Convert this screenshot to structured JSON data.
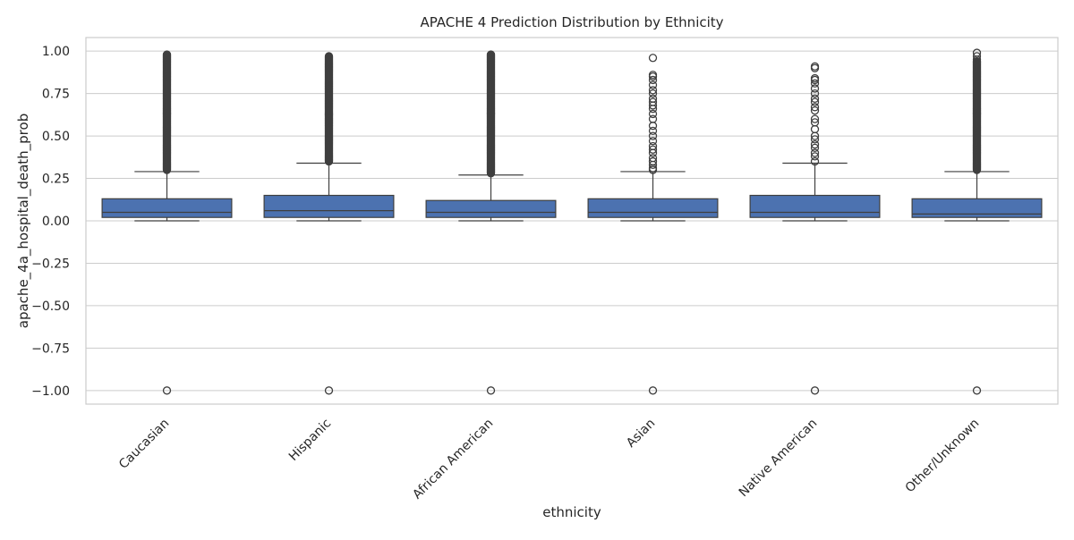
{
  "chart_data": {
    "type": "box",
    "title": "APACHE 4 Prediction Distribution by Ethnicity",
    "xlabel": "ethnicity",
    "ylabel": "apache_4a_hospital_death_prob",
    "ylim": [
      -1.08,
      1.08
    ],
    "yticks": [
      1.0,
      0.75,
      0.5,
      0.25,
      0.0,
      -0.25,
      -0.5,
      -0.75,
      -1.0
    ],
    "ytick_labels": [
      "1.00",
      "0.75",
      "0.50",
      "0.25",
      "0.00",
      "−0.25",
      "−0.50",
      "−0.75",
      "−1.00"
    ],
    "grid": true,
    "legend": "none",
    "categories": [
      "Caucasian",
      "Hispanic",
      "African American",
      "Asian",
      "Native American",
      "Other/Unknown"
    ],
    "boxes": [
      {
        "category": "Caucasian",
        "q1": 0.02,
        "median": 0.05,
        "q3": 0.13,
        "whisker_low": 0.0,
        "whisker_high": 0.29,
        "outlier_range": [
          0.3,
          0.98
        ],
        "outliers": [
          -1.0
        ]
      },
      {
        "category": "Hispanic",
        "q1": 0.02,
        "median": 0.06,
        "q3": 0.15,
        "whisker_low": 0.0,
        "whisker_high": 0.34,
        "outlier_range": [
          0.35,
          0.97
        ],
        "outliers": [
          -1.0
        ]
      },
      {
        "category": "African American",
        "q1": 0.02,
        "median": 0.05,
        "q3": 0.12,
        "whisker_low": 0.0,
        "whisker_high": 0.27,
        "outlier_range": [
          0.28,
          0.98
        ],
        "outliers": [
          -1.0
        ]
      },
      {
        "category": "Asian",
        "q1": 0.02,
        "median": 0.05,
        "q3": 0.13,
        "whisker_low": 0.0,
        "whisker_high": 0.29,
        "outliers": [
          -1.0,
          0.3,
          0.31,
          0.33,
          0.35,
          0.37,
          0.4,
          0.42,
          0.44,
          0.47,
          0.5,
          0.53,
          0.56,
          0.6,
          0.63,
          0.66,
          0.68,
          0.7,
          0.72,
          0.75,
          0.77,
          0.8,
          0.83,
          0.85,
          0.86,
          0.96
        ]
      },
      {
        "category": "Native American",
        "q1": 0.02,
        "median": 0.05,
        "q3": 0.15,
        "whisker_low": 0.0,
        "whisker_high": 0.34,
        "outliers": [
          -1.0,
          0.35,
          0.38,
          0.4,
          0.43,
          0.45,
          0.48,
          0.5,
          0.54,
          0.58,
          0.6,
          0.65,
          0.67,
          0.7,
          0.72,
          0.75,
          0.78,
          0.81,
          0.83,
          0.84,
          0.9,
          0.91
        ]
      },
      {
        "category": "Other/Unknown",
        "q1": 0.02,
        "median": 0.04,
        "q3": 0.13,
        "whisker_low": 0.0,
        "whisker_high": 0.29,
        "outlier_range": [
          0.3,
          0.94
        ],
        "outliers": [
          -1.0,
          0.95,
          0.97,
          0.99
        ]
      }
    ],
    "colors": {
      "box_fill": "#4c72b0",
      "line": "#3f3f3f",
      "grid": "#cccccc",
      "frame": "#cccccc"
    }
  }
}
